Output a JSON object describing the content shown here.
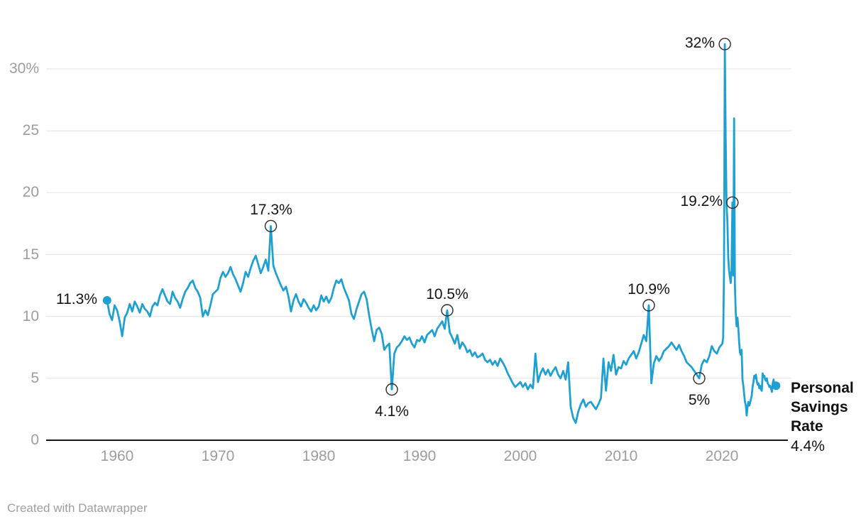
{
  "chart_data": {
    "type": "line",
    "title": "",
    "series_label": "Personal Savings Rate",
    "end_value_label": "4.4%",
    "unit": "%",
    "x_ticks": [
      1960,
      1970,
      1980,
      1990,
      2000,
      2010,
      2020
    ],
    "y_ticks": [
      {
        "value": 0,
        "label": "0"
      },
      {
        "value": 5,
        "label": "5"
      },
      {
        "value": 10,
        "label": "10"
      },
      {
        "value": 15,
        "label": "15"
      },
      {
        "value": 20,
        "label": "20"
      },
      {
        "value": 25,
        "label": "25"
      },
      {
        "value": 30,
        "label": "30%"
      }
    ],
    "xlim": [
      1953,
      2026.8
    ],
    "ylim": [
      0,
      33.5
    ],
    "grid": true,
    "legend_position": "end-of-line",
    "colors": {
      "line": "#1fa0d2",
      "axis": "#161616",
      "grid": "#e4e4e4",
      "tick_label": "#9d9d9d",
      "annotation": "#141414",
      "marker_circle": "#2b2b2b",
      "credit": "#9e9e9e"
    },
    "annotations": [
      {
        "text": "11.3%",
        "year": 1959.0,
        "value": 11.3,
        "circle": false,
        "pos": "left"
      },
      {
        "text": "17.3%",
        "year": 1975.25,
        "value": 17.3,
        "circle": true,
        "pos": "above"
      },
      {
        "text": "4.1%",
        "year": 1987.25,
        "value": 4.1,
        "circle": true,
        "pos": "below"
      },
      {
        "text": "10.5%",
        "year": 1992.75,
        "value": 10.5,
        "circle": true,
        "pos": "above"
      },
      {
        "text": "10.9%",
        "year": 2012.75,
        "value": 10.9,
        "circle": true,
        "pos": "above"
      },
      {
        "text": "5%",
        "year": 2017.75,
        "value": 5.0,
        "circle": true,
        "pos": "below"
      },
      {
        "text": "32%",
        "year": 2020.292,
        "value": 32.0,
        "circle": true,
        "pos": "left"
      },
      {
        "text": "19.2%",
        "year": 2021.042,
        "value": 19.2,
        "circle": true,
        "pos": "left"
      }
    ],
    "points": [
      [
        1959.0,
        11.3
      ],
      [
        1959.25,
        10.2
      ],
      [
        1959.5,
        9.7
      ],
      [
        1959.75,
        10.9
      ],
      [
        1960.0,
        10.5
      ],
      [
        1960.25,
        9.6
      ],
      [
        1960.5,
        8.4
      ],
      [
        1960.75,
        9.9
      ],
      [
        1961.0,
        10.3
      ],
      [
        1961.25,
        11.0
      ],
      [
        1961.5,
        10.4
      ],
      [
        1961.75,
        11.2
      ],
      [
        1962.0,
        10.8
      ],
      [
        1962.25,
        10.3
      ],
      [
        1962.5,
        11.0
      ],
      [
        1962.75,
        10.6
      ],
      [
        1963.0,
        10.4
      ],
      [
        1963.25,
        10.0
      ],
      [
        1963.5,
        10.8
      ],
      [
        1963.75,
        11.1
      ],
      [
        1964.0,
        10.9
      ],
      [
        1964.25,
        11.7
      ],
      [
        1964.5,
        12.2
      ],
      [
        1964.75,
        11.7
      ],
      [
        1965.0,
        11.2
      ],
      [
        1965.25,
        11.0
      ],
      [
        1965.5,
        12.0
      ],
      [
        1965.75,
        11.5
      ],
      [
        1966.0,
        11.2
      ],
      [
        1966.25,
        10.7
      ],
      [
        1966.5,
        11.4
      ],
      [
        1966.75,
        12.0
      ],
      [
        1967.0,
        12.3
      ],
      [
        1967.25,
        12.7
      ],
      [
        1967.5,
        12.9
      ],
      [
        1967.75,
        12.3
      ],
      [
        1968.0,
        12.0
      ],
      [
        1968.25,
        11.5
      ],
      [
        1968.5,
        10.0
      ],
      [
        1968.75,
        10.5
      ],
      [
        1969.0,
        10.1
      ],
      [
        1969.25,
        10.9
      ],
      [
        1969.5,
        11.8
      ],
      [
        1969.75,
        12.0
      ],
      [
        1970.0,
        12.2
      ],
      [
        1970.25,
        13.1
      ],
      [
        1970.5,
        13.6
      ],
      [
        1970.75,
        13.2
      ],
      [
        1971.0,
        13.5
      ],
      [
        1971.25,
        14.0
      ],
      [
        1971.5,
        13.4
      ],
      [
        1971.75,
        13.0
      ],
      [
        1972.0,
        12.5
      ],
      [
        1972.25,
        12.0
      ],
      [
        1972.5,
        12.7
      ],
      [
        1972.75,
        13.6
      ],
      [
        1973.0,
        13.2
      ],
      [
        1973.25,
        13.9
      ],
      [
        1973.5,
        14.5
      ],
      [
        1973.75,
        14.9
      ],
      [
        1974.0,
        14.2
      ],
      [
        1974.25,
        13.5
      ],
      [
        1974.5,
        14.0
      ],
      [
        1974.75,
        14.6
      ],
      [
        1975.0,
        13.7
      ],
      [
        1975.25,
        17.3
      ],
      [
        1975.5,
        14.1
      ],
      [
        1975.75,
        13.5
      ],
      [
        1976.0,
        13.0
      ],
      [
        1976.25,
        12.5
      ],
      [
        1976.5,
        12.1
      ],
      [
        1976.75,
        12.4
      ],
      [
        1977.0,
        11.6
      ],
      [
        1977.25,
        10.4
      ],
      [
        1977.5,
        11.3
      ],
      [
        1977.75,
        11.8
      ],
      [
        1978.0,
        11.2
      ],
      [
        1978.25,
        10.8
      ],
      [
        1978.5,
        11.4
      ],
      [
        1978.75,
        11.1
      ],
      [
        1979.0,
        10.7
      ],
      [
        1979.25,
        10.4
      ],
      [
        1979.5,
        10.9
      ],
      [
        1979.75,
        10.5
      ],
      [
        1980.0,
        10.8
      ],
      [
        1980.25,
        11.7
      ],
      [
        1980.5,
        11.2
      ],
      [
        1980.75,
        11.6
      ],
      [
        1981.0,
        11.1
      ],
      [
        1981.25,
        11.5
      ],
      [
        1981.5,
        12.3
      ],
      [
        1981.75,
        12.9
      ],
      [
        1982.0,
        12.7
      ],
      [
        1982.25,
        13.0
      ],
      [
        1982.5,
        12.3
      ],
      [
        1982.75,
        11.8
      ],
      [
        1983.0,
        11.3
      ],
      [
        1983.25,
        10.2
      ],
      [
        1983.5,
        9.8
      ],
      [
        1983.75,
        10.6
      ],
      [
        1984.0,
        11.2
      ],
      [
        1984.25,
        11.8
      ],
      [
        1984.5,
        12.0
      ],
      [
        1984.75,
        11.4
      ],
      [
        1985.0,
        10.1
      ],
      [
        1985.25,
        9.0
      ],
      [
        1985.5,
        8.0
      ],
      [
        1985.75,
        8.9
      ],
      [
        1986.0,
        9.1
      ],
      [
        1986.25,
        8.6
      ],
      [
        1986.5,
        7.3
      ],
      [
        1986.75,
        7.6
      ],
      [
        1987.0,
        7.8
      ],
      [
        1987.25,
        4.1
      ],
      [
        1987.5,
        7.0
      ],
      [
        1987.75,
        7.5
      ],
      [
        1988.0,
        7.7
      ],
      [
        1988.25,
        8.0
      ],
      [
        1988.5,
        8.4
      ],
      [
        1988.75,
        8.1
      ],
      [
        1989.0,
        8.3
      ],
      [
        1989.25,
        7.8
      ],
      [
        1989.5,
        7.5
      ],
      [
        1989.75,
        8.1
      ],
      [
        1990.0,
        8.0
      ],
      [
        1990.25,
        8.4
      ],
      [
        1990.5,
        7.9
      ],
      [
        1990.75,
        8.5
      ],
      [
        1991.0,
        8.7
      ],
      [
        1991.25,
        8.9
      ],
      [
        1991.5,
        8.4
      ],
      [
        1991.75,
        9.0
      ],
      [
        1992.0,
        9.3
      ],
      [
        1992.25,
        9.6
      ],
      [
        1992.5,
        9.0
      ],
      [
        1992.75,
        10.5
      ],
      [
        1993.0,
        8.7
      ],
      [
        1993.25,
        8.3
      ],
      [
        1993.5,
        7.8
      ],
      [
        1993.75,
        8.5
      ],
      [
        1994.0,
        7.4
      ],
      [
        1994.25,
        7.9
      ],
      [
        1994.5,
        7.6
      ],
      [
        1994.75,
        7.1
      ],
      [
        1995.0,
        7.3
      ],
      [
        1995.25,
        6.8
      ],
      [
        1995.5,
        7.1
      ],
      [
        1995.75,
        6.7
      ],
      [
        1996.0,
        6.8
      ],
      [
        1996.25,
        7.0
      ],
      [
        1996.5,
        6.5
      ],
      [
        1996.75,
        6.3
      ],
      [
        1997.0,
        6.5
      ],
      [
        1997.25,
        6.1
      ],
      [
        1997.5,
        6.4
      ],
      [
        1997.75,
        6.0
      ],
      [
        1998.0,
        6.6
      ],
      [
        1998.25,
        6.3
      ],
      [
        1998.5,
        5.9
      ],
      [
        1998.75,
        5.4
      ],
      [
        1999.0,
        5.0
      ],
      [
        1999.25,
        4.6
      ],
      [
        1999.5,
        4.3
      ],
      [
        1999.75,
        4.5
      ],
      [
        2000.0,
        4.7
      ],
      [
        2000.25,
        4.3
      ],
      [
        2000.5,
        4.6
      ],
      [
        2000.75,
        4.1
      ],
      [
        2001.0,
        4.5
      ],
      [
        2001.25,
        4.2
      ],
      [
        2001.5,
        7.0
      ],
      [
        2001.75,
        4.7
      ],
      [
        2002.0,
        5.4
      ],
      [
        2002.25,
        5.8
      ],
      [
        2002.5,
        5.3
      ],
      [
        2002.75,
        5.7
      ],
      [
        2003.0,
        5.2
      ],
      [
        2003.25,
        5.6
      ],
      [
        2003.5,
        5.9
      ],
      [
        2003.75,
        5.3
      ],
      [
        2004.0,
        5.0
      ],
      [
        2004.25,
        5.6
      ],
      [
        2004.5,
        4.9
      ],
      [
        2004.75,
        6.3
      ],
      [
        2005.0,
        2.7
      ],
      [
        2005.25,
        1.8
      ],
      [
        2005.5,
        1.4
      ],
      [
        2005.75,
        2.3
      ],
      [
        2006.0,
        2.9
      ],
      [
        2006.25,
        3.3
      ],
      [
        2006.5,
        2.7
      ],
      [
        2006.75,
        3.0
      ],
      [
        2007.0,
        3.1
      ],
      [
        2007.25,
        2.8
      ],
      [
        2007.5,
        2.5
      ],
      [
        2007.75,
        2.9
      ],
      [
        2008.0,
        3.4
      ],
      [
        2008.25,
        6.6
      ],
      [
        2008.5,
        4.0
      ],
      [
        2008.75,
        6.3
      ],
      [
        2009.0,
        5.6
      ],
      [
        2009.25,
        6.9
      ],
      [
        2009.5,
        5.3
      ],
      [
        2009.75,
        5.9
      ],
      [
        2010.0,
        5.8
      ],
      [
        2010.25,
        6.4
      ],
      [
        2010.5,
        6.1
      ],
      [
        2010.75,
        6.6
      ],
      [
        2011.0,
        6.9
      ],
      [
        2011.25,
        7.2
      ],
      [
        2011.5,
        6.6
      ],
      [
        2011.75,
        7.1
      ],
      [
        2012.0,
        7.8
      ],
      [
        2012.25,
        8.5
      ],
      [
        2012.5,
        8.0
      ],
      [
        2012.75,
        10.9
      ],
      [
        2013.0,
        4.6
      ],
      [
        2013.25,
        6.2
      ],
      [
        2013.5,
        6.8
      ],
      [
        2013.75,
        6.4
      ],
      [
        2014.0,
        6.7
      ],
      [
        2014.25,
        7.2
      ],
      [
        2014.5,
        7.4
      ],
      [
        2014.75,
        7.6
      ],
      [
        2015.0,
        7.9
      ],
      [
        2015.25,
        7.6
      ],
      [
        2015.5,
        7.3
      ],
      [
        2015.75,
        7.7
      ],
      [
        2016.0,
        7.2
      ],
      [
        2016.25,
        6.8
      ],
      [
        2016.5,
        6.3
      ],
      [
        2016.75,
        6.1
      ],
      [
        2017.0,
        5.9
      ],
      [
        2017.25,
        5.6
      ],
      [
        2017.5,
        5.3
      ],
      [
        2017.75,
        5.0
      ],
      [
        2018.0,
        6.1
      ],
      [
        2018.25,
        6.5
      ],
      [
        2018.5,
        6.3
      ],
      [
        2018.75,
        6.8
      ],
      [
        2019.0,
        7.6
      ],
      [
        2019.25,
        7.2
      ],
      [
        2019.5,
        7.0
      ],
      [
        2019.75,
        7.5
      ],
      [
        2020.042,
        7.8
      ],
      [
        2020.125,
        8.3
      ],
      [
        2020.208,
        13.8
      ],
      [
        2020.292,
        32.0
      ],
      [
        2020.375,
        24.5
      ],
      [
        2020.458,
        19.0
      ],
      [
        2020.542,
        17.8
      ],
      [
        2020.625,
        14.8
      ],
      [
        2020.708,
        13.7
      ],
      [
        2020.792,
        13.2
      ],
      [
        2020.875,
        12.7
      ],
      [
        2020.958,
        13.8
      ],
      [
        2021.042,
        19.2
      ],
      [
        2021.125,
        13.3
      ],
      [
        2021.208,
        26.0
      ],
      [
        2021.292,
        12.6
      ],
      [
        2021.375,
        10.3
      ],
      [
        2021.458,
        9.2
      ],
      [
        2021.542,
        9.9
      ],
      [
        2021.625,
        9.1
      ],
      [
        2021.708,
        7.9
      ],
      [
        2021.792,
        7.1
      ],
      [
        2021.875,
        6.9
      ],
      [
        2021.958,
        7.3
      ],
      [
        2022.042,
        4.9
      ],
      [
        2022.125,
        4.4
      ],
      [
        2022.208,
        3.7
      ],
      [
        2022.292,
        3.1
      ],
      [
        2022.375,
        2.8
      ],
      [
        2022.458,
        2.0
      ],
      [
        2022.542,
        2.7
      ],
      [
        2022.625,
        3.1
      ],
      [
        2022.708,
        2.8
      ],
      [
        2022.792,
        3.0
      ],
      [
        2022.875,
        3.3
      ],
      [
        2022.958,
        3.6
      ],
      [
        2023.042,
        4.3
      ],
      [
        2023.125,
        4.7
      ],
      [
        2023.208,
        5.2
      ],
      [
        2023.292,
        5.0
      ],
      [
        2023.375,
        5.3
      ],
      [
        2023.458,
        4.8
      ],
      [
        2023.542,
        4.5
      ],
      [
        2023.625,
        4.6
      ],
      [
        2023.708,
        4.2
      ],
      [
        2023.792,
        4.4
      ],
      [
        2023.875,
        4.1
      ],
      [
        2023.958,
        4.0
      ],
      [
        2024.042,
        5.4
      ],
      [
        2024.125,
        5.1
      ],
      [
        2024.208,
        5.2
      ],
      [
        2024.292,
        4.9
      ],
      [
        2024.375,
        4.8
      ],
      [
        2024.458,
        5.0
      ],
      [
        2024.542,
        4.6
      ],
      [
        2024.625,
        4.5
      ],
      [
        2024.708,
        4.3
      ],
      [
        2024.792,
        4.4
      ],
      [
        2024.875,
        4.2
      ],
      [
        2024.958,
        3.9
      ],
      [
        2025.042,
        4.6
      ],
      [
        2025.125,
        4.9
      ],
      [
        2025.208,
        4.5
      ],
      [
        2025.292,
        4.3
      ],
      [
        2025.375,
        4.4
      ]
    ]
  },
  "footer": {
    "credit": "Created with Datawrapper"
  }
}
